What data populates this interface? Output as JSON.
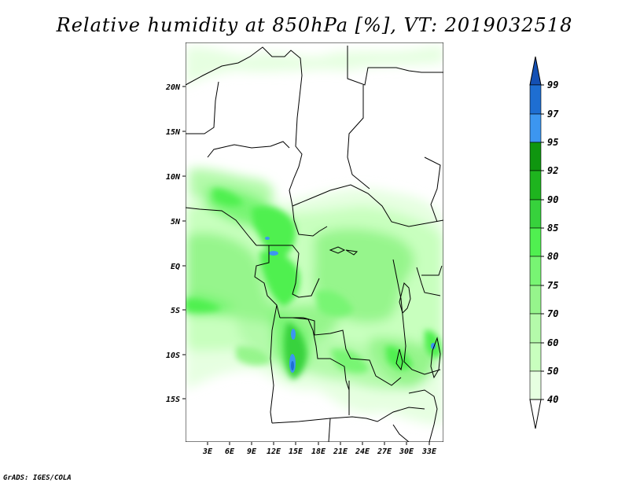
{
  "title": "Relative humidity at 850hPa [%], VT: 2019032518",
  "credit": "GrADS: IGES/COLA",
  "map": {
    "lat_labels": [
      "20N",
      "15N",
      "10N",
      "5N",
      "EQ",
      "5S",
      "10S",
      "15S"
    ],
    "lon_labels": [
      "3E",
      "6E",
      "9E",
      "12E",
      "15E",
      "18E",
      "21E",
      "24E",
      "27E",
      "30E",
      "33E"
    ],
    "lat_range": [
      -20,
      25
    ],
    "lon_range": [
      0,
      35
    ]
  },
  "colorbar": {
    "levels": [
      "99",
      "97",
      "95",
      "92",
      "90",
      "85",
      "80",
      "75",
      "70",
      "60",
      "50",
      "40"
    ],
    "colors": {
      "c97_99": "#1e6ed2",
      "c95_97": "#3c96f0",
      "c92_95": "#0f960f",
      "c90_92": "#1eb41e",
      "c85_90": "#37d23c",
      "c80_85": "#50f050",
      "c75_80": "#78f573",
      "c70_75": "#96f58c",
      "c60_70": "#b4faaa",
      "c50_60": "#c8ffbe",
      "c40_50": "#e6ffe1",
      "top_arrow": "#1450b4"
    }
  }
}
